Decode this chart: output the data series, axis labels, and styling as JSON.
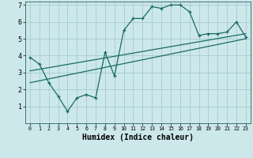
{
  "xlabel": "Humidex (Indice chaleur)",
  "xlim": [
    -0.5,
    23.5
  ],
  "ylim": [
    0,
    7.2
  ],
  "xticks": [
    0,
    1,
    2,
    3,
    4,
    5,
    6,
    7,
    8,
    9,
    10,
    11,
    12,
    13,
    14,
    15,
    16,
    17,
    18,
    19,
    20,
    21,
    22,
    23
  ],
  "yticks": [
    1,
    2,
    3,
    4,
    5,
    6,
    7
  ],
  "bg_color": "#cce8eb",
  "line_color": "#1a6b60",
  "grid_color": "#aacfd3",
  "line1_x": [
    0,
    1,
    2,
    3,
    4,
    5,
    6,
    7,
    8,
    9,
    10,
    11,
    12,
    13,
    14,
    15,
    16,
    17,
    18,
    19,
    20,
    21,
    22,
    23
  ],
  "line1_y": [
    3.9,
    3.5,
    2.4,
    1.6,
    0.7,
    1.5,
    1.7,
    1.5,
    4.2,
    2.8,
    5.5,
    6.2,
    6.2,
    6.9,
    6.8,
    7.0,
    7.0,
    6.6,
    5.2,
    5.3,
    5.3,
    5.4,
    6.0,
    5.1
  ],
  "line2_x": [
    0,
    23
  ],
  "line2_y": [
    2.4,
    5.0
  ],
  "line3_x": [
    0,
    23
  ],
  "line3_y": [
    3.1,
    5.3
  ]
}
